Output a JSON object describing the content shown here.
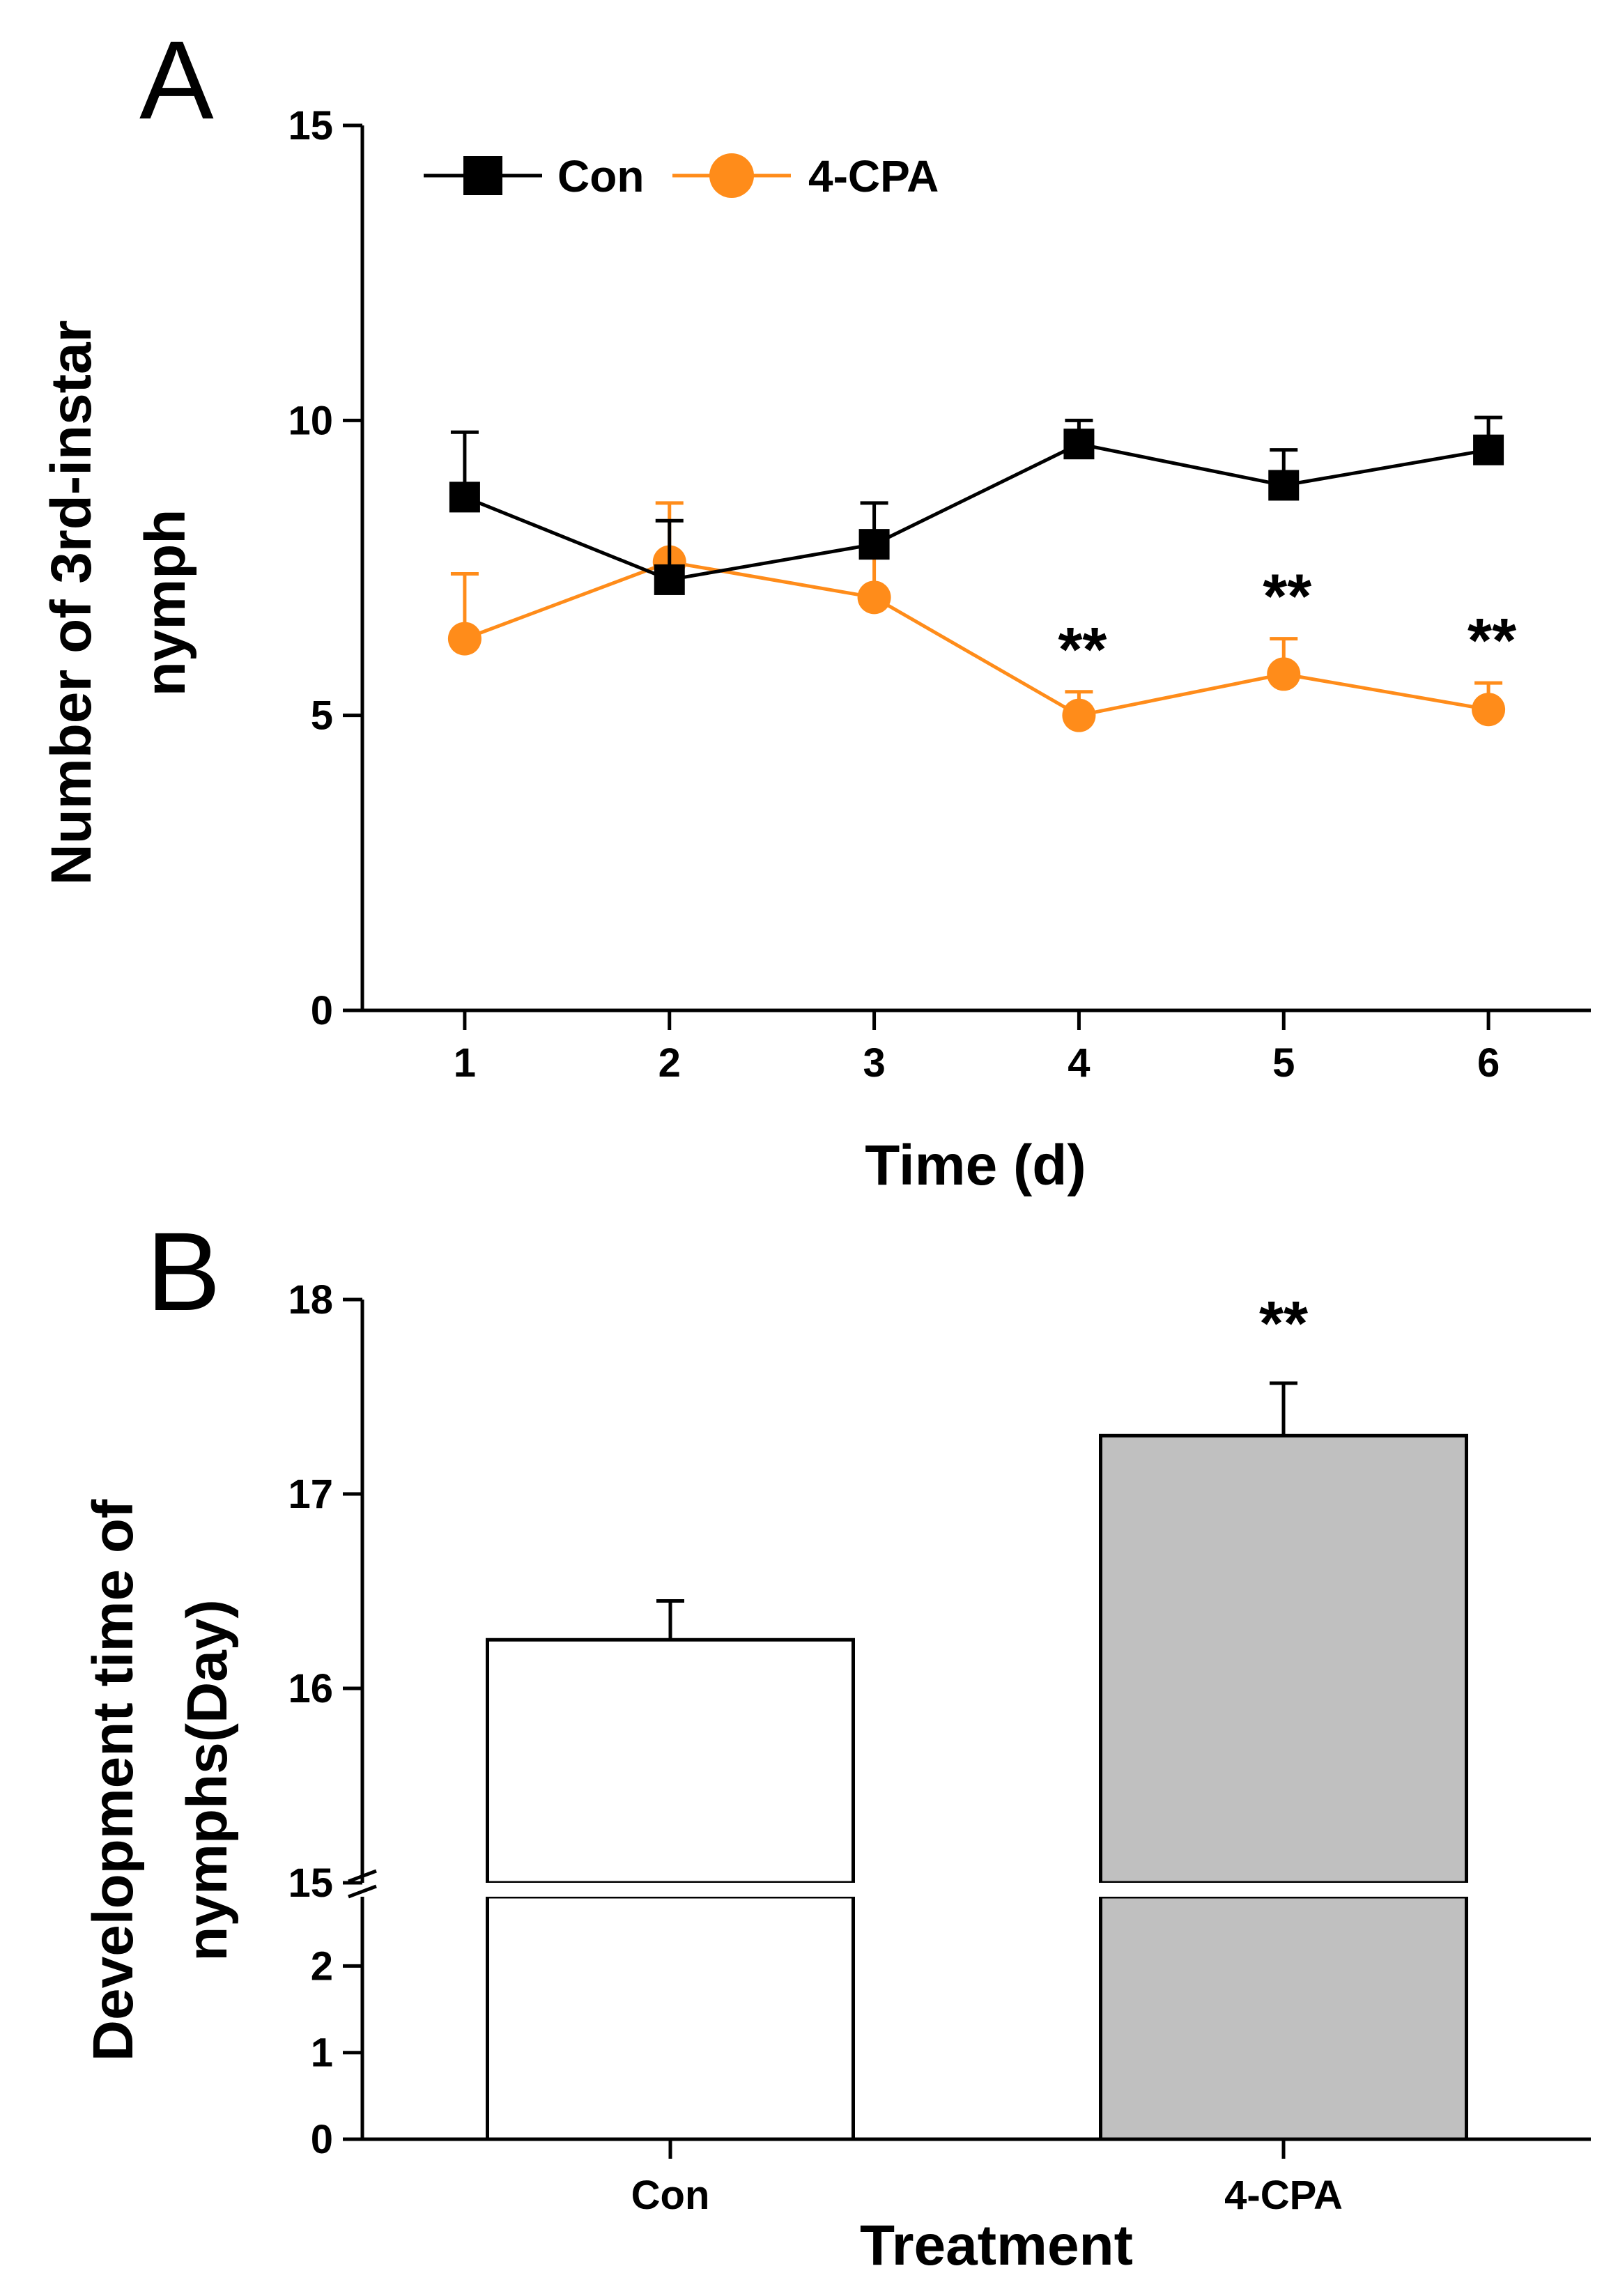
{
  "chart_data": [
    {
      "panel": "A",
      "type": "line",
      "xlabel": "Time (d)",
      "ylabel": [
        "Number of 3rd-instar",
        "nymph"
      ],
      "x": [
        1,
        2,
        3,
        4,
        5,
        6
      ],
      "xticks": [
        "1",
        "2",
        "3",
        "4",
        "5",
        "6"
      ],
      "xlim": [
        0.5,
        6.5
      ],
      "ylim": [
        0,
        15
      ],
      "yticks": [
        "0",
        "5",
        "10",
        "15"
      ],
      "grid": false,
      "legend_position": "top-left",
      "series": [
        {
          "name": "Con",
          "color": "#000000",
          "marker": "square",
          "values": [
            8.7,
            7.3,
            7.9,
            9.6,
            8.9,
            9.5
          ],
          "errors": [
            1.1,
            1.0,
            0.7,
            0.4,
            0.6,
            0.55
          ]
        },
        {
          "name": "4-CPA",
          "color": "#ff8c1a",
          "marker": "circle",
          "values": [
            6.3,
            7.6,
            7.0,
            5.0,
            5.7,
            5.1
          ],
          "errors": [
            1.1,
            1.0,
            0.7,
            0.4,
            0.6,
            0.45
          ],
          "annotations": [
            {
              "x": 4,
              "text": "**"
            },
            {
              "x": 5,
              "text": "**"
            },
            {
              "x": 6,
              "text": "**"
            }
          ]
        }
      ]
    },
    {
      "panel": "B",
      "type": "bar",
      "xlabel": "Treatment",
      "ylabel": [
        "Development time of",
        "nymphs(Day)"
      ],
      "categories": [
        "Con",
        "4-CPA"
      ],
      "values": [
        16.25,
        17.3
      ],
      "errors": [
        0.2,
        0.27
      ],
      "colors": [
        "#ffffff",
        "#c0c0c0"
      ],
      "annotations": [
        {
          "category": "4-CPA",
          "text": "**"
        }
      ],
      "axis_break": true,
      "ylim_lower": [
        0,
        2.8
      ],
      "ylim_upper": [
        15,
        18
      ],
      "yticks_lower": [
        "0",
        "1",
        "2"
      ],
      "yticks_upper": [
        "15",
        "16",
        "17",
        "18"
      ],
      "grid": false
    }
  ]
}
